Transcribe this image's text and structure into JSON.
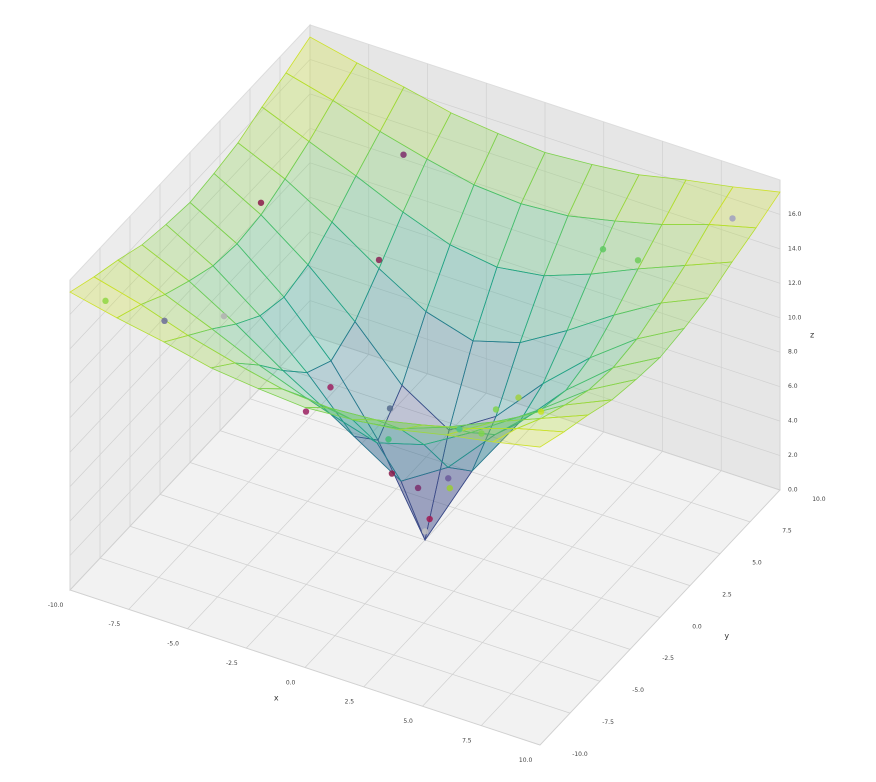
{
  "chart_data": {
    "type": "surface3d",
    "x_label": "x",
    "y_label": "y",
    "z_label": "z",
    "xlim": [
      -10,
      10
    ],
    "ylim": [
      -10,
      10
    ],
    "zlim": [
      0,
      18
    ],
    "xticks": [
      {
        "value": -10,
        "label": "-10.0"
      },
      {
        "value": -7.5,
        "label": "-7.5"
      },
      {
        "value": -5,
        "label": "-5.0"
      },
      {
        "value": -2.5,
        "label": "-2.5"
      },
      {
        "value": 0,
        "label": "0.0"
      },
      {
        "value": 2.5,
        "label": "2.5"
      },
      {
        "value": 5,
        "label": "5.0"
      },
      {
        "value": 7.5,
        "label": "7.5"
      },
      {
        "value": 10,
        "label": "10.0"
      }
    ],
    "yticks": [
      {
        "value": -10,
        "label": "-10.0"
      },
      {
        "value": -7.5,
        "label": "-7.5"
      },
      {
        "value": -5,
        "label": "-5.0"
      },
      {
        "value": -2.5,
        "label": "-2.5"
      },
      {
        "value": 0,
        "label": "0.0"
      },
      {
        "value": 2.5,
        "label": "2.5"
      },
      {
        "value": 5,
        "label": "5.0"
      },
      {
        "value": 7.5,
        "label": "7.5"
      },
      {
        "value": 10,
        "label": "10.0"
      }
    ],
    "zticks": [
      {
        "value": 0,
        "label": "0.0"
      },
      {
        "value": 2,
        "label": "2.0"
      },
      {
        "value": 4,
        "label": "4.0"
      },
      {
        "value": 6,
        "label": "6.0"
      },
      {
        "value": 8,
        "label": "8.0"
      },
      {
        "value": 10,
        "label": "10.0"
      },
      {
        "value": 12,
        "label": "12.0"
      },
      {
        "value": 14,
        "label": "14.0"
      },
      {
        "value": 16,
        "label": "16.0"
      }
    ],
    "colormap": "viridis",
    "grid": true,
    "surface": {
      "x": [
        -10,
        -8,
        -6,
        -4,
        -2,
        0,
        2,
        4,
        6,
        8,
        10
      ],
      "y": [
        -10,
        -8,
        -6,
        -4,
        -2,
        0,
        2,
        4,
        6,
        8,
        10
      ],
      "z": [
        [
          17.3,
          16.7,
          16.2,
          15.6,
          15.3,
          15.1,
          15.3,
          15.6,
          16.2,
          16.7,
          17.3
        ],
        [
          16.7,
          16.0,
          15.1,
          14.4,
          13.8,
          13.6,
          13.8,
          14.4,
          15.1,
          16.0,
          16.7
        ],
        [
          16.2,
          15.1,
          14.0,
          12.8,
          11.8,
          11.4,
          11.8,
          12.8,
          14.0,
          15.1,
          16.2
        ],
        [
          15.6,
          14.4,
          12.8,
          11.0,
          9.4,
          8.6,
          9.4,
          11.0,
          12.8,
          14.4,
          15.6
        ],
        [
          15.3,
          13.8,
          11.8,
          9.4,
          6.6,
          4.9,
          6.6,
          9.4,
          11.8,
          13.8,
          15.3
        ],
        [
          15.1,
          13.6,
          11.4,
          8.6,
          4.9,
          0,
          4.9,
          8.6,
          11.4,
          13.6,
          15.1
        ],
        [
          15.3,
          13.8,
          11.8,
          9.4,
          6.6,
          4.9,
          6.6,
          9.4,
          11.8,
          13.8,
          15.3
        ],
        [
          15.6,
          14.4,
          12.8,
          11.0,
          9.4,
          8.6,
          9.4,
          11.0,
          12.8,
          14.4,
          15.6
        ],
        [
          16.2,
          15.1,
          14.0,
          12.8,
          11.8,
          11.4,
          11.8,
          12.8,
          14.0,
          15.1,
          16.2
        ],
        [
          16.7,
          16.0,
          15.1,
          14.4,
          13.8,
          13.6,
          13.8,
          14.4,
          15.1,
          16.0,
          16.7
        ],
        [
          17.3,
          16.7,
          16.2,
          15.6,
          15.3,
          15.1,
          15.3,
          15.6,
          16.2,
          16.7,
          17.3
        ]
      ]
    },
    "points": {
      "x": [
        0,
        0.3,
        -0.5,
        0.8,
        -1,
        1.5,
        -2,
        2,
        -3,
        3,
        -4,
        5,
        -6,
        6,
        -8,
        8,
        -9,
        9,
        -5,
        4,
        -7,
        1,
        -2,
        7
      ],
      "y": [
        0,
        -0.2,
        0.4,
        0.5,
        -0.8,
        -1,
        1,
        2,
        -2,
        -3,
        4,
        -2,
        -5,
        6,
        2,
        -6,
        -9,
        8,
        8,
        7,
        -8,
        -5,
        -6,
        -9
      ],
      "z": [
        0.5,
        1.5,
        2.5,
        3,
        4,
        5,
        6,
        7,
        9,
        10,
        11.5,
        12,
        14,
        14.5,
        14.5,
        15.5,
        16.5,
        16.8,
        14.2,
        13.5,
        15.5,
        10,
        11,
        16
      ],
      "colors": [
        "#c0c0c0",
        "#a01850",
        "#7b2d6b",
        "#9acd32",
        "#8b1a4a",
        "#6b5b9a",
        "#556b8d",
        "#7fd34e",
        "#9b2060",
        "#4cc38a",
        "#8a2252",
        "#a0d040",
        "#b0b0b0",
        "#6dcd59",
        "#8b1a4a",
        "#c8e020",
        "#90d743",
        "#a0a0c0",
        "#7b2d6b",
        "#5ec962",
        "#6b6b9a",
        "#3fbc73",
        "#9b2060",
        "#7fd34e"
      ]
    }
  }
}
